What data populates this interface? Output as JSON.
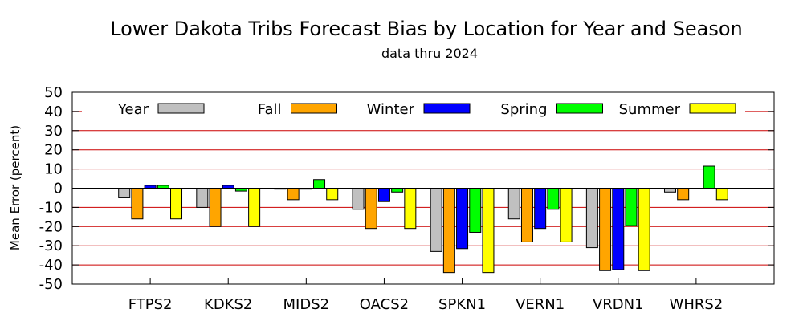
{
  "chart_data": {
    "type": "bar",
    "title": "Lower Dakota Tribs Forecast Bias by Location for Year and Season",
    "subtitle": "data thru 2024",
    "xlabel": "",
    "ylabel": "Mean Error (percent)",
    "ylim": [
      -50,
      50
    ],
    "yticks": [
      50,
      40,
      30,
      20,
      10,
      0,
      -10,
      -20,
      -30,
      -40,
      -50
    ],
    "grid": "horizontal red lines",
    "legend_position": "top, inside plot",
    "categories": [
      "FTPS2",
      "KDKS2",
      "MIDS2",
      "OACS2",
      "SPKN1",
      "VERN1",
      "VRDN1",
      "WHRS2"
    ],
    "series": [
      {
        "name": "Year",
        "color": "#c0c0c0",
        "values": [
          -5,
          -10,
          -0.5,
          -11,
          -33,
          -16,
          -31,
          -2
        ]
      },
      {
        "name": "Fall",
        "color": "#ffa500",
        "values": [
          -16,
          -20,
          -6,
          -21,
          -44,
          -28,
          -43,
          -6
        ]
      },
      {
        "name": "Winter",
        "color": "#0000ff",
        "values": [
          1.5,
          1.5,
          -0.5,
          -7,
          -31.5,
          -21,
          -42.5,
          0
        ]
      },
      {
        "name": "Spring",
        "color": "#00ff00",
        "values": [
          1.5,
          -1.5,
          4.5,
          -2,
          -23,
          -11,
          -19.5,
          11.5
        ]
      },
      {
        "name": "Summer",
        "color": "#ffff00",
        "values": [
          -16,
          -20,
          -6,
          -21,
          -44,
          -28,
          -43,
          -6
        ]
      }
    ]
  }
}
